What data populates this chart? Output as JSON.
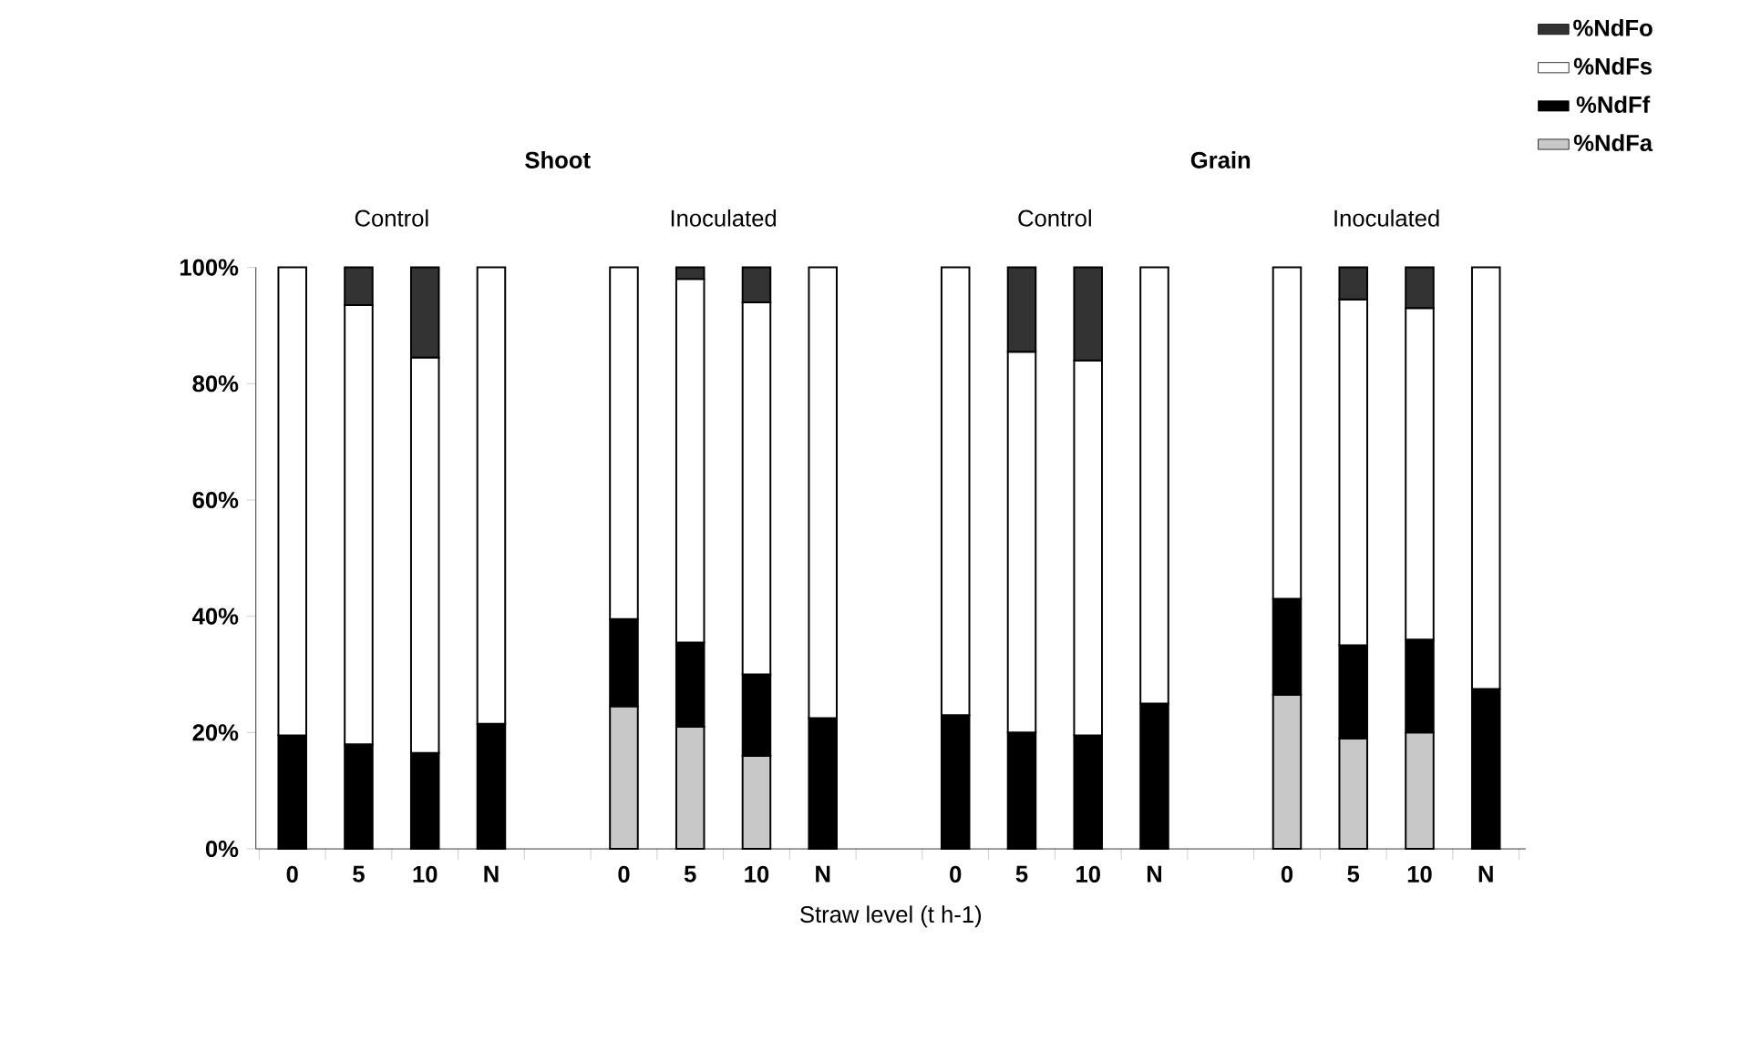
{
  "chart_data": {
    "type": "bar",
    "stacked": true,
    "annotations": [
      "Shoot",
      "Grain",
      "Control",
      "Inoculated",
      "Control",
      "Inoculated"
    ],
    "xlabel": "Straw level (t h-1)",
    "categories": [
      "0",
      "5",
      "10",
      "N",
      null,
      "0",
      "5",
      "10",
      "N",
      null,
      "0",
      "5",
      "10",
      "N",
      null,
      "0",
      "5",
      "10",
      "N"
    ],
    "series": [
      {
        "name": "%NdFa",
        "color": "#c8c8c8",
        "values": [
          null,
          null,
          null,
          null,
          null,
          24.5,
          21,
          16,
          null,
          null,
          null,
          null,
          null,
          null,
          null,
          26.5,
          19,
          20,
          null
        ]
      },
      {
        "name": "%NdFf",
        "color": "#000000",
        "values": [
          19.5,
          18,
          16.5,
          21.5,
          null,
          15,
          14.5,
          14,
          22.5,
          null,
          23,
          20,
          19.5,
          25,
          null,
          16.5,
          16,
          16,
          27.5
        ]
      },
      {
        "name": "%NdFs",
        "color": "#ffffff",
        "values": [
          80.5,
          75.5,
          68,
          78.5,
          null,
          60.5,
          62.5,
          64,
          77.5,
          null,
          77,
          65.5,
          64.5,
          75,
          null,
          57,
          59.5,
          57,
          72.5
        ]
      },
      {
        "name": "%NdFo",
        "color": "#333333",
        "values": [
          null,
          6.5,
          15.5,
          null,
          null,
          null,
          2,
          6,
          null,
          null,
          null,
          14.5,
          16,
          null,
          null,
          null,
          5.5,
          7,
          null
        ]
      }
    ],
    "ylim": [
      0,
      100
    ],
    "yticks": [
      {
        "value": 0,
        "label": "0%"
      },
      {
        "value": 20,
        "label": "20%"
      },
      {
        "value": 40,
        "label": "40%"
      },
      {
        "value": 60,
        "label": "60%"
      },
      {
        "value": 80,
        "label": "80%"
      },
      {
        "value": 100,
        "label": "100%"
      }
    ],
    "grid": false,
    "legend": "right"
  }
}
